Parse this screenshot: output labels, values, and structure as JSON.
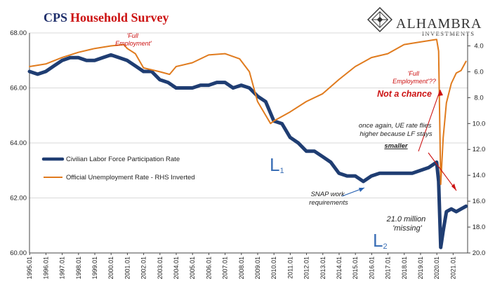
{
  "title": {
    "part1": "CPS",
    "part2": "Household Survey"
  },
  "brand": {
    "name": "ALHAMBRA",
    "sub": "INVESTMENTS"
  },
  "colors": {
    "lfpr": "#1f3d72",
    "unemp": "#e07b1e",
    "title_dark": "#1f2f6b",
    "title_red": "#cc1111",
    "annotation_red": "#cc1111",
    "annotation_blue": "#2a64b4",
    "grid": "#d9d9d9"
  },
  "legend": {
    "items": [
      {
        "label": "Civilian Labor Force Participation Rate",
        "color": "#1f3d72"
      },
      {
        "label": "Official Unemployment Rate - RHS Inverted",
        "color": "#e07b1e"
      }
    ]
  },
  "annotations": {
    "full_emp_1": [
      "'Full",
      "Employment'"
    ],
    "full_emp_2": [
      "'Full",
      "Employment'??"
    ],
    "not_a_chance": "Not a chance",
    "ue_note": [
      "once again, UE rate flies",
      "higher because LF stays"
    ],
    "ue_note_emph": "smaller",
    "snap": [
      "SNAP work",
      "requirements"
    ],
    "missing": [
      "21.0 million",
      "'missing'"
    ],
    "l1": {
      "letter": "L",
      "sub": "1"
    },
    "l2": {
      "letter": "L",
      "sub": "2"
    }
  },
  "chart_data": {
    "type": "line",
    "xlim": [
      1995.0,
      2021.9
    ],
    "x_ticks": [
      "1995.01",
      "1996.01",
      "1997.01",
      "1998.01",
      "1999.01",
      "2000.01",
      "2001.01",
      "2002.01",
      "2003.01",
      "2004.01",
      "2005.01",
      "2006.01",
      "2007.01",
      "2008.01",
      "2009.01",
      "2010.01",
      "2011.01",
      "2012.01",
      "2013.01",
      "2014.01",
      "2015.01",
      "2016.01",
      "2017.01",
      "2018.01",
      "2019.01",
      "2020.01",
      "2021.01"
    ],
    "y_left": {
      "ticks": [
        "68.00",
        "66.00",
        "64.00",
        "62.00",
        "60.00"
      ],
      "lim": [
        60,
        68
      ]
    },
    "y_right": {
      "ticks": [
        "4.0",
        "6.0",
        "8.0",
        "10.0",
        "12.0",
        "14.0",
        "16.0",
        "18.0",
        "20.0"
      ],
      "lim": [
        3,
        20
      ],
      "inverted": true
    },
    "grid": true,
    "series": [
      {
        "name": "Civilian Labor Force Participation Rate",
        "axis": "left",
        "color": "#1f3d72",
        "points": [
          [
            1995.0,
            66.6
          ],
          [
            1995.5,
            66.5
          ],
          [
            1996.0,
            66.6
          ],
          [
            1996.5,
            66.8
          ],
          [
            1997.0,
            67.0
          ],
          [
            1997.5,
            67.1
          ],
          [
            1998.0,
            67.1
          ],
          [
            1998.5,
            67.0
          ],
          [
            1999.0,
            67.0
          ],
          [
            1999.5,
            67.1
          ],
          [
            2000.0,
            67.2
          ],
          [
            2000.5,
            67.1
          ],
          [
            2001.0,
            67.0
          ],
          [
            2001.5,
            66.8
          ],
          [
            2002.0,
            66.6
          ],
          [
            2002.5,
            66.6
          ],
          [
            2003.0,
            66.3
          ],
          [
            2003.5,
            66.2
          ],
          [
            2004.0,
            66.0
          ],
          [
            2004.5,
            66.0
          ],
          [
            2005.0,
            66.0
          ],
          [
            2005.5,
            66.1
          ],
          [
            2006.0,
            66.1
          ],
          [
            2006.5,
            66.2
          ],
          [
            2007.0,
            66.2
          ],
          [
            2007.5,
            66.0
          ],
          [
            2008.0,
            66.1
          ],
          [
            2008.5,
            66.0
          ],
          [
            2009.0,
            65.7
          ],
          [
            2009.5,
            65.5
          ],
          [
            2010.0,
            64.8
          ],
          [
            2010.5,
            64.7
          ],
          [
            2011.0,
            64.2
          ],
          [
            2011.5,
            64.0
          ],
          [
            2012.0,
            63.7
          ],
          [
            2012.5,
            63.7
          ],
          [
            2013.0,
            63.5
          ],
          [
            2013.5,
            63.3
          ],
          [
            2014.0,
            62.9
          ],
          [
            2014.5,
            62.8
          ],
          [
            2015.0,
            62.8
          ],
          [
            2015.5,
            62.6
          ],
          [
            2016.0,
            62.8
          ],
          [
            2016.5,
            62.9
          ],
          [
            2017.0,
            62.9
          ],
          [
            2017.5,
            62.9
          ],
          [
            2018.0,
            62.9
          ],
          [
            2018.5,
            62.9
          ],
          [
            2019.0,
            63.0
          ],
          [
            2019.5,
            63.1
          ],
          [
            2020.0,
            63.3
          ],
          [
            2020.12,
            62.6
          ],
          [
            2020.25,
            60.2
          ],
          [
            2020.4,
            60.8
          ],
          [
            2020.6,
            61.5
          ],
          [
            2020.9,
            61.6
          ],
          [
            2021.2,
            61.5
          ],
          [
            2021.5,
            61.6
          ],
          [
            2021.8,
            61.7
          ]
        ]
      },
      {
        "name": "Official Unemployment Rate - RHS Inverted",
        "axis": "right",
        "color": "#e07b1e",
        "points": [
          [
            1995.0,
            5.6
          ],
          [
            1996.0,
            5.4
          ],
          [
            1997.0,
            4.9
          ],
          [
            1998.0,
            4.5
          ],
          [
            1999.0,
            4.2
          ],
          [
            2000.0,
            4.0
          ],
          [
            2000.8,
            3.9
          ],
          [
            2001.0,
            4.2
          ],
          [
            2001.5,
            4.6
          ],
          [
            2002.0,
            5.7
          ],
          [
            2003.0,
            6.0
          ],
          [
            2003.6,
            6.2
          ],
          [
            2004.0,
            5.6
          ],
          [
            2005.0,
            5.3
          ],
          [
            2006.0,
            4.7
          ],
          [
            2007.0,
            4.6
          ],
          [
            2007.9,
            5.0
          ],
          [
            2008.5,
            6.0
          ],
          [
            2009.0,
            8.3
          ],
          [
            2009.8,
            10.0
          ],
          [
            2010.0,
            9.8
          ],
          [
            2011.0,
            9.1
          ],
          [
            2012.0,
            8.3
          ],
          [
            2013.0,
            7.7
          ],
          [
            2014.0,
            6.6
          ],
          [
            2015.0,
            5.6
          ],
          [
            2016.0,
            4.9
          ],
          [
            2017.0,
            4.6
          ],
          [
            2018.0,
            3.9
          ],
          [
            2019.0,
            3.7
          ],
          [
            2020.0,
            3.5
          ],
          [
            2020.12,
            4.4
          ],
          [
            2020.25,
            14.7
          ],
          [
            2020.4,
            11.1
          ],
          [
            2020.6,
            8.4
          ],
          [
            2020.9,
            6.9
          ],
          [
            2021.2,
            6.1
          ],
          [
            2021.5,
            5.9
          ],
          [
            2021.8,
            5.2
          ]
        ]
      }
    ]
  }
}
